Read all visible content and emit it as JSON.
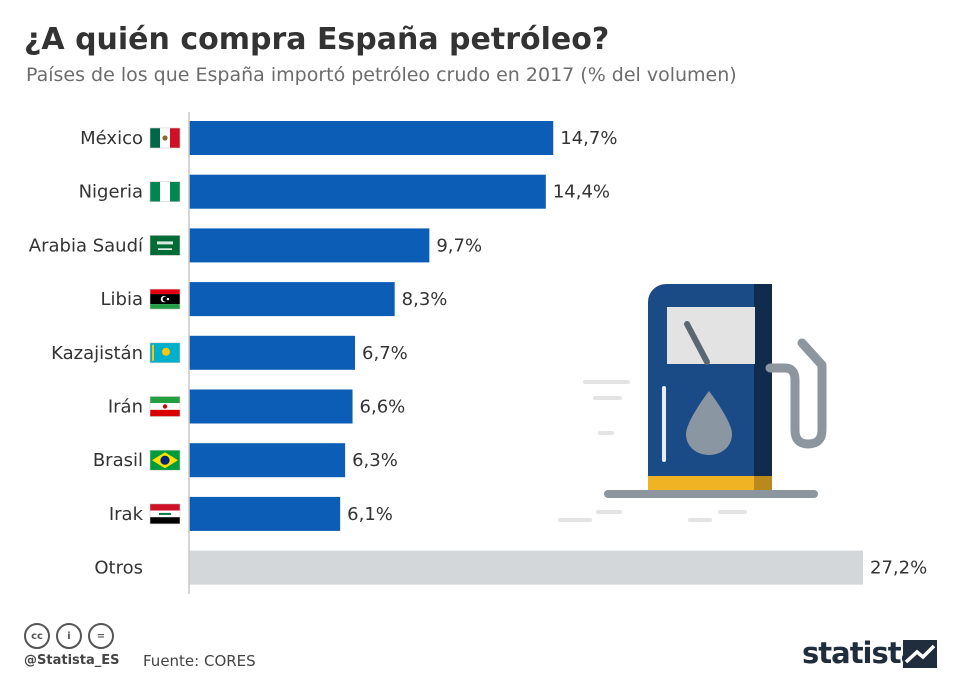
{
  "header": {
    "title": "¿A quién compra España petróleo?",
    "subtitle": "Países de los que España importó petróleo crudo en 2017  (% del volumen)"
  },
  "chart_data": {
    "type": "bar",
    "orientation": "horizontal",
    "categories": [
      "México",
      "Nigeria",
      "Arabia Saudí",
      "Libia",
      "Kazajistán",
      "Irán",
      "Brasil",
      "Irak",
      "Otros"
    ],
    "values": [
      14.7,
      14.4,
      9.7,
      8.3,
      6.7,
      6.6,
      6.3,
      6.1,
      27.2
    ],
    "data_labels": [
      "14,7%",
      "14,4%",
      "9,7%",
      "8,3%",
      "6,7%",
      "6,6%",
      "6,3%",
      "6,1%",
      "27,2%"
    ],
    "flags": [
      "mexico-flag",
      "nigeria-flag",
      "saudi-arabia-flag",
      "libya-flag",
      "kazakhstan-flag",
      "iran-flag",
      "brazil-flag",
      "iraq-flag",
      ""
    ],
    "colors": {
      "main": "#0c5db5",
      "other": "#d3d7da"
    },
    "xlim": [
      0,
      27.2
    ],
    "grid": false,
    "legend": "none"
  },
  "footer": {
    "handle": "@Statista_ES",
    "source": "Fuente: CORES",
    "brand": "statista",
    "icons": [
      "cc-icon",
      "by-icon",
      "nd-icon"
    ]
  },
  "illustration": {
    "icon": "fuel-pump-icon"
  }
}
